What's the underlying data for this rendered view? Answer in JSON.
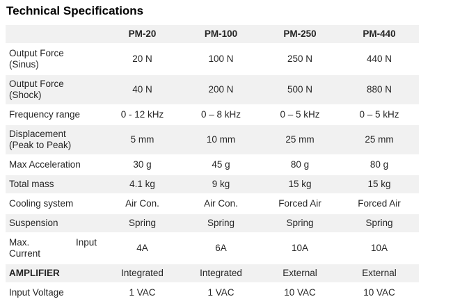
{
  "page": {
    "title": "Technical Specifications"
  },
  "colors": {
    "row_shade": "#f1f1f1",
    "text": "#262626",
    "title_text": "#000000"
  },
  "table": {
    "header": {
      "label": "",
      "columns": [
        "PM-20",
        "PM-100",
        "PM-250",
        "PM-440"
      ]
    },
    "rows": [
      {
        "label_lines": [
          "Output Force",
          "(Sinus)"
        ],
        "justified": false,
        "label_bold": false,
        "values": [
          "20 N",
          "100 N",
          "250 N",
          "440 N"
        ]
      },
      {
        "label_lines": [
          "Output Force",
          "(Shock)"
        ],
        "justified": false,
        "label_bold": false,
        "values": [
          "40 N",
          "200 N",
          "500 N",
          "880 N"
        ]
      },
      {
        "label_lines": [
          "Frequency range"
        ],
        "justified": false,
        "label_bold": false,
        "values": [
          "0 - 12 kHz",
          "0 – 8 kHz",
          "0 – 5 kHz",
          "0 – 5 kHz"
        ]
      },
      {
        "label_lines": [
          "Displacement",
          "(Peak to Peak)"
        ],
        "justified": false,
        "label_bold": false,
        "values": [
          "5 mm",
          "10 mm",
          "25 mm",
          "25 mm"
        ]
      },
      {
        "label_lines": [
          "Max Acceleration"
        ],
        "justified": false,
        "label_bold": false,
        "values": [
          "30 g",
          "45 g",
          "80 g",
          "80 g"
        ]
      },
      {
        "label_lines": [
          "Total mass"
        ],
        "justified": false,
        "label_bold": false,
        "values": [
          "4.1 kg",
          "9 kg",
          "15 kg",
          "15 kg"
        ]
      },
      {
        "label_lines": [
          "Cooling system"
        ],
        "justified": false,
        "label_bold": false,
        "values": [
          "Air Con.",
          "Air Con.",
          "Forced Air",
          "Forced Air"
        ]
      },
      {
        "label_lines": [
          "Suspension"
        ],
        "justified": false,
        "label_bold": false,
        "values": [
          "Spring",
          "Spring",
          "Spring",
          "Spring"
        ]
      },
      {
        "label_lines": [
          "Max.|Input",
          "Current"
        ],
        "justified": true,
        "label_bold": false,
        "values": [
          "4A",
          "6A",
          "10A",
          "10A"
        ]
      },
      {
        "label_lines": [
          "AMPLIFIER"
        ],
        "justified": false,
        "label_bold": true,
        "values": [
          "Integrated",
          "Integrated",
          "External",
          "External"
        ]
      },
      {
        "label_lines": [
          "Input Voltage"
        ],
        "justified": false,
        "label_bold": false,
        "values": [
          "1 VAC",
          "1 VAC",
          "10 VAC",
          "10 VAC"
        ]
      }
    ]
  }
}
